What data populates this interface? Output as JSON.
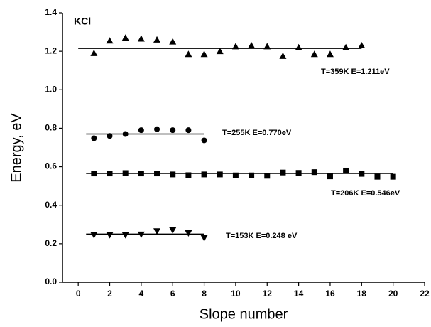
{
  "chart_data": {
    "type": "scatter",
    "annotation": "KCl",
    "x_label": "Slope number",
    "y_label": "Energy, eV",
    "xlim": [
      -1,
      22
    ],
    "xticks": [
      0,
      2,
      4,
      6,
      8,
      10,
      12,
      14,
      16,
      18,
      20,
      22
    ],
    "ylim": [
      0,
      1.4
    ],
    "yticks": [
      {
        "value": 0,
        "label": "0.0"
      },
      0.2,
      0.4,
      0.6,
      0.8,
      {
        "value": 1,
        "label": "1.0"
      },
      1.2,
      1.4
    ],
    "series": [
      {
        "name": "T=359K  E=1.211eV",
        "marker": "triangle-up",
        "color": "#000000",
        "x": [
          1,
          2,
          3,
          4,
          5,
          6,
          7,
          8,
          9,
          10,
          11,
          12,
          13,
          14,
          15,
          16,
          17,
          18
        ],
        "values": [
          1.19,
          1.255,
          1.27,
          1.265,
          1.26,
          1.25,
          1.185,
          1.185,
          1.2,
          1.225,
          1.23,
          1.225,
          1.175,
          1.22,
          1.185,
          1.185,
          1.22,
          1.23
        ],
        "fit": {
          "x": [
            0,
            18
          ],
          "y": 1.215
        }
      },
      {
        "name": "T=255K  E=0.770eV",
        "marker": "circle",
        "color": "#000000",
        "x": [
          1,
          2,
          3,
          4,
          5,
          6,
          7,
          8
        ],
        "values": [
          0.748,
          0.76,
          0.77,
          0.79,
          0.795,
          0.79,
          0.79,
          0.737
        ],
        "fit": {
          "x": [
            0.5,
            8
          ],
          "y": 0.77
        }
      },
      {
        "name": "T=206K  E=0.546eV",
        "marker": "square",
        "color": "#000000",
        "x": [
          1,
          2,
          3,
          4,
          5,
          6,
          7,
          8,
          9,
          10,
          11,
          12,
          13,
          14,
          15,
          16,
          17,
          18,
          19,
          20
        ],
        "values": [
          0.565,
          0.565,
          0.567,
          0.565,
          0.565,
          0.56,
          0.556,
          0.56,
          0.56,
          0.555,
          0.555,
          0.553,
          0.57,
          0.568,
          0.572,
          0.55,
          0.58,
          0.563,
          0.548,
          0.548
        ],
        "fit": {
          "x": [
            0.5,
            20
          ],
          "y": 0.565
        }
      },
      {
        "name": "T=153K  E=0.248 eV",
        "marker": "triangle-down",
        "color": "#000000",
        "x": [
          1,
          2,
          3,
          4,
          5,
          6,
          7,
          8
        ],
        "values": [
          0.245,
          0.245,
          0.245,
          0.248,
          0.265,
          0.27,
          0.255,
          0.23
        ],
        "fit": {
          "x": [
            0.5,
            8
          ],
          "y": 0.25
        }
      }
    ]
  }
}
